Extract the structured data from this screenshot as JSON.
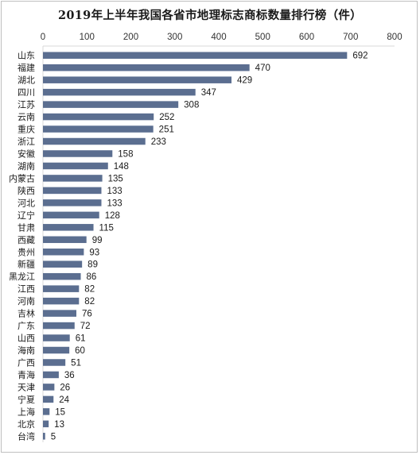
{
  "chart_data": {
    "type": "bar",
    "orientation": "horizontal",
    "title": "2019年上半年我国各省市地理标志商标数量排行榜（件）",
    "categories": [
      "山东",
      "福建",
      "湖北",
      "四川",
      "江苏",
      "云南",
      "重庆",
      "浙江",
      "安徽",
      "湖南",
      "内蒙古",
      "陕西",
      "河北",
      "辽宁",
      "甘肃",
      "西藏",
      "贵州",
      "新疆",
      "黑龙江",
      "江西",
      "河南",
      "吉林",
      "广东",
      "山西",
      "海南",
      "广西",
      "青海",
      "天津",
      "宁夏",
      "上海",
      "北京",
      "台湾"
    ],
    "values": [
      692,
      470,
      429,
      347,
      308,
      252,
      251,
      233,
      158,
      148,
      135,
      133,
      133,
      128,
      115,
      99,
      93,
      89,
      86,
      82,
      82,
      76,
      72,
      61,
      60,
      51,
      36,
      26,
      24,
      15,
      13,
      5
    ],
    "xlim": [
      0,
      800
    ],
    "xticks": [
      "0",
      "100",
      "200",
      "300",
      "400",
      "500",
      "600",
      "700",
      "800"
    ],
    "axis_position": "top",
    "grid": false,
    "legend": "none",
    "bar_color": "#5b6e90",
    "data_labels": true
  }
}
